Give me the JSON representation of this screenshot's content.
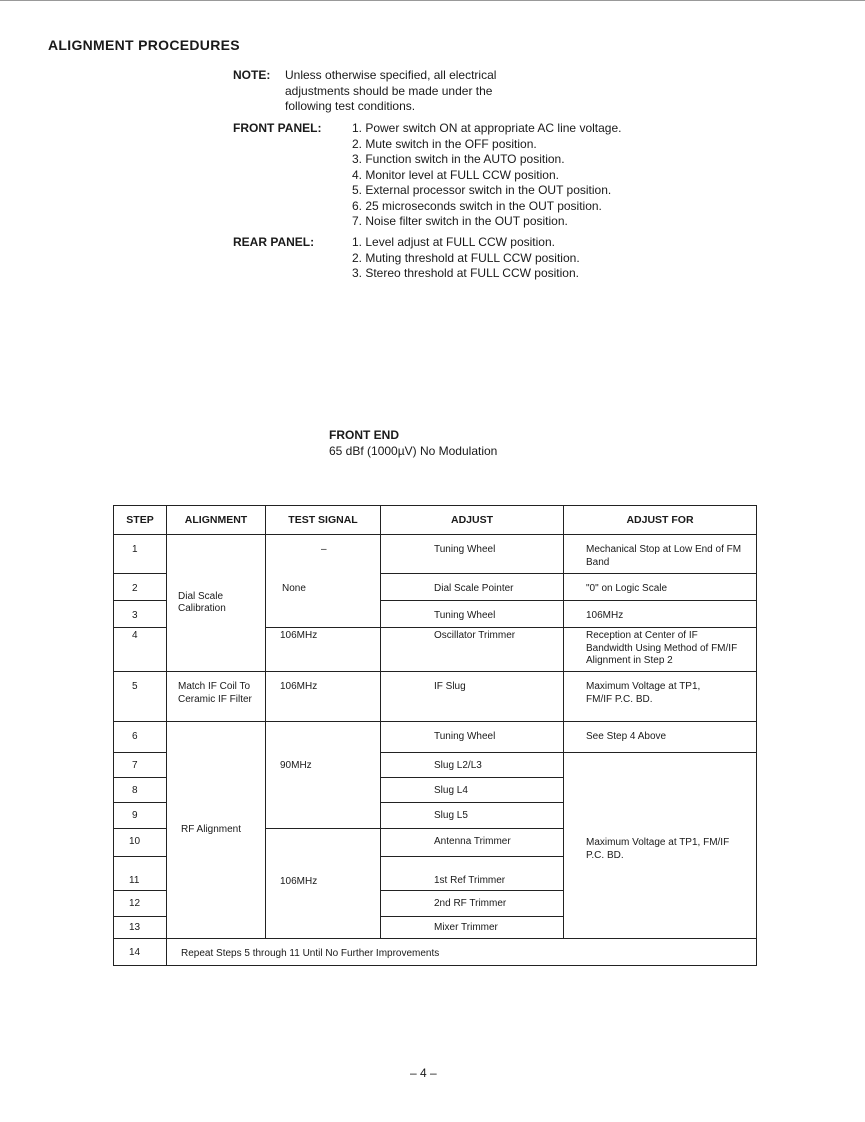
{
  "title": "ALIGNMENT PROCEDURES",
  "note": {
    "label": "NOTE:",
    "lines": [
      "Unless otherwise specified, all electrical",
      "adjustments should be made under the",
      "following test conditions."
    ]
  },
  "front_panel": {
    "label": "FRONT PANEL:",
    "items": [
      "1. Power switch ON at appropriate AC line voltage.",
      "2. Mute switch in the OFF position.",
      "3. Function switch in the AUTO position.",
      "4. Monitor level at FULL CCW position.",
      "5. External processor switch in the OUT position.",
      "6. 25 microseconds switch in the OUT position.",
      "7. Noise filter switch in the OUT position."
    ]
  },
  "rear_panel": {
    "label": "REAR PANEL:",
    "items": [
      "1. Level adjust at FULL CCW position.",
      "2. Muting threshold at FULL CCW position.",
      "3. Stereo threshold at FULL CCW position."
    ]
  },
  "section": {
    "title": "FRONT END",
    "subtitle": "65 dBf (1000µV) No Modulation"
  },
  "table": {
    "headers": [
      "STEP",
      "ALIGNMENT",
      "TEST SIGNAL",
      "ADJUST",
      "ADJUST FOR"
    ],
    "steps": [
      "1",
      "2",
      "3",
      "4",
      "5",
      "6",
      "7",
      "8",
      "9",
      "10",
      "11",
      "12",
      "13",
      "14"
    ],
    "alignment": [
      "Dial Scale Calibration",
      "Match IF Coil To Ceramic IF Filter",
      "RF Alignment"
    ],
    "test_signal": [
      "–",
      "None",
      "106MHz",
      "106MHz",
      "90MHz",
      "106MHz"
    ],
    "adjust": [
      "Tuning Wheel",
      "Dial Scale Pointer",
      "Tuning Wheel",
      "Oscillator Trimmer",
      "IF Slug",
      "Tuning Wheel",
      "Slug L2/L3",
      "Slug L4",
      "Slug L5",
      "Antenna Trimmer",
      "1st Ref Trimmer",
      "2nd RF Trimmer",
      "Mixer Trimmer"
    ],
    "adjust_for": [
      "Mechanical Stop at Low End of FM Band",
      "\"0\" on Logic Scale",
      "106MHz",
      "Reception at Center of IF Bandwidth Using Method of FM/IF Alignment in Step 2",
      "Maximum Voltage at TP1, FM/IF P.C. BD.",
      "See Step 4 Above",
      "Maximum Voltage at TP1, FM/IF P.C. BD."
    ],
    "step14": "Repeat Steps 5 through 11 Until No Further Improvements"
  },
  "page_number": "– 4 –"
}
